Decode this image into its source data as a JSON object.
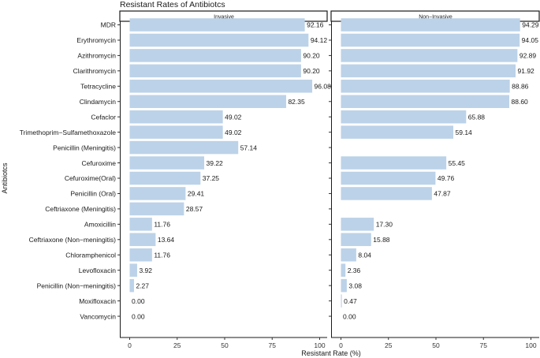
{
  "chart_data": {
    "type": "bar",
    "orientation": "horizontal",
    "title": "Resistant Rates of Antibiotcs",
    "xlabel": "Resistant Rate (%)",
    "ylabel": "Antibiotcs",
    "xlim": [
      0,
      100
    ],
    "xticks": [
      "0",
      "25",
      "50",
      "75",
      "100"
    ],
    "bar_color": "#bcd2e8",
    "categories": [
      "MDR",
      "Erythromycin",
      "Azithromycin",
      "Clarithromycin",
      "Tetracycline",
      "Clindamycin",
      "Cefaclor",
      "Trimethoprim−Sulfamethoxazole",
      "Penicillin (Meningitis)",
      "Cefuroxime",
      "Cefuroxime(Oral)",
      "Penicillin (Oral)",
      "Ceftriaxone (Meningitis)",
      "Amoxicillin",
      "Ceftriaxone (Non−meningitis)",
      "Chloramphenicol",
      "Levofloxacin",
      "Penicillin (Non−meningitis)",
      "Moxifloxacin",
      "Vancomycin"
    ],
    "panels": [
      {
        "name": "Invasive",
        "values": [
          92.16,
          94.12,
          90.2,
          90.2,
          96.08,
          82.35,
          49.02,
          49.02,
          57.14,
          39.22,
          37.25,
          29.41,
          28.57,
          11.76,
          13.64,
          11.76,
          3.92,
          2.27,
          0.0,
          0.0
        ],
        "labels": [
          "92.16",
          "94.12",
          "90.20",
          "90.20",
          "96.08",
          "82.35",
          "49.02",
          "49.02",
          "57.14",
          "39.22",
          "37.25",
          "29.41",
          "28.57",
          "11.76",
          "13.64",
          "11.76",
          "3.92",
          "2.27",
          "0.00",
          "0.00"
        ]
      },
      {
        "name": "Non−Invasive",
        "values": [
          94.29,
          94.05,
          92.89,
          91.92,
          88.86,
          88.6,
          65.88,
          59.14,
          null,
          55.45,
          49.76,
          47.87,
          null,
          17.3,
          15.88,
          8.04,
          2.36,
          3.08,
          0.47,
          0.0
        ],
        "labels": [
          "94.29",
          "94.05",
          "92.89",
          "91.92",
          "88.86",
          "88.60",
          "65.88",
          "59.14",
          null,
          "55.45",
          "49.76",
          "47.87",
          null,
          "17.30",
          "15.88",
          "8.04",
          "2.36",
          "3.08",
          "0.47",
          "0.00"
        ]
      }
    ]
  }
}
